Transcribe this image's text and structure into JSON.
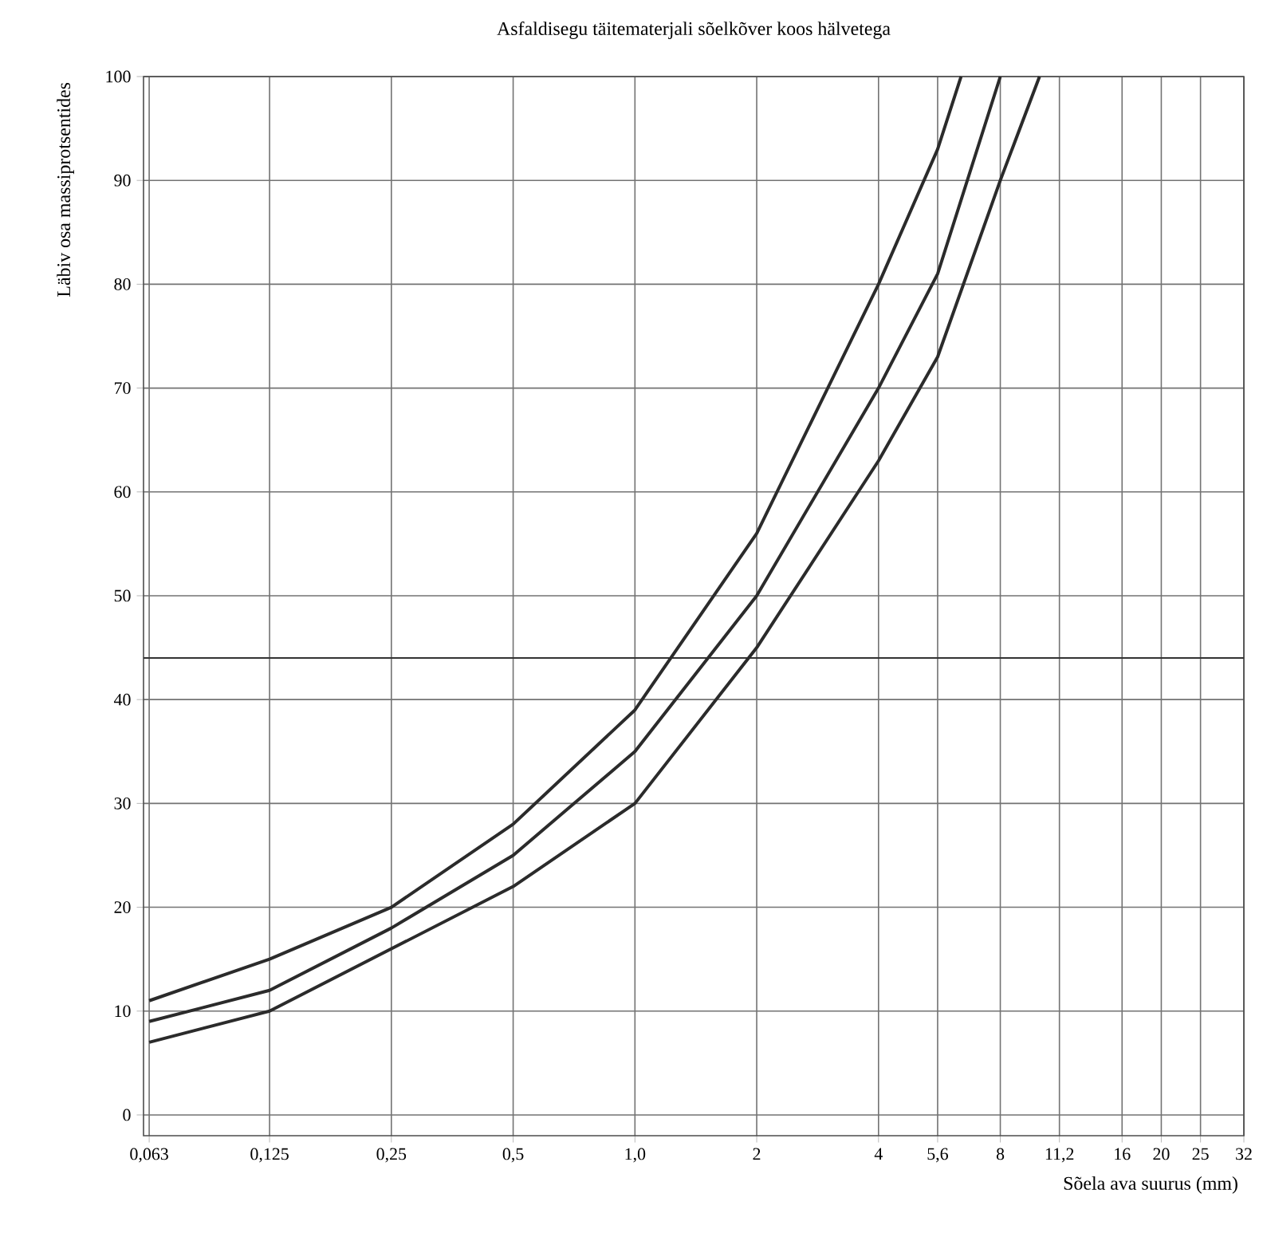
{
  "chart_data": {
    "type": "line",
    "title": "Asfaldisegu täitematerjali sõelkõver koos hälvetega",
    "xlabel": "Sõela ava suurus (mm)",
    "ylabel": "Läbiv osa massiprotsentides",
    "series": [
      {
        "color": "#2b2b2b",
        "x": [
          0.063,
          0.125,
          0.25,
          0.5,
          1,
          2,
          4,
          5.6,
          6.4
        ],
        "values": [
          11,
          15,
          20,
          28,
          39,
          56,
          80,
          93,
          100
        ]
      },
      {
        "color": "#2b2b2b",
        "x": [
          0.063,
          0.125,
          0.25,
          0.5,
          1,
          2,
          4,
          5.6,
          8
        ],
        "values": [
          9,
          12,
          18,
          25,
          35,
          50,
          70,
          81,
          100
        ]
      },
      {
        "color": "#2b2b2b",
        "x": [
          0.063,
          0.125,
          0.25,
          0.5,
          1,
          2,
          4,
          5.6,
          8,
          10
        ],
        "values": [
          7,
          10,
          16,
          22,
          30,
          45,
          63,
          73,
          90,
          100
        ]
      }
    ],
    "xlim": [
      0.061,
      32
    ],
    "ylim": [
      -2,
      100
    ],
    "xticks": [
      {
        "value": 0.063,
        "label": "0,063"
      },
      {
        "value": 0.125,
        "label": "0,125"
      },
      {
        "value": 0.25,
        "label": "0,25"
      },
      {
        "value": 0.5,
        "label": "0,5"
      },
      {
        "value": 1,
        "label": "1,0"
      },
      2,
      4,
      {
        "value": 5.6,
        "label": "5,6"
      },
      8,
      {
        "value": 11.2,
        "label": "11,2"
      },
      16,
      20,
      25,
      32
    ],
    "yticks": [
      0,
      10,
      20,
      30,
      40,
      50,
      60,
      70,
      80,
      90,
      100
    ],
    "log": "x",
    "grid": true,
    "line_style": "solid",
    "ref_lines": [
      {
        "axis": "y",
        "value": 44,
        "color": "#333333"
      }
    ]
  }
}
